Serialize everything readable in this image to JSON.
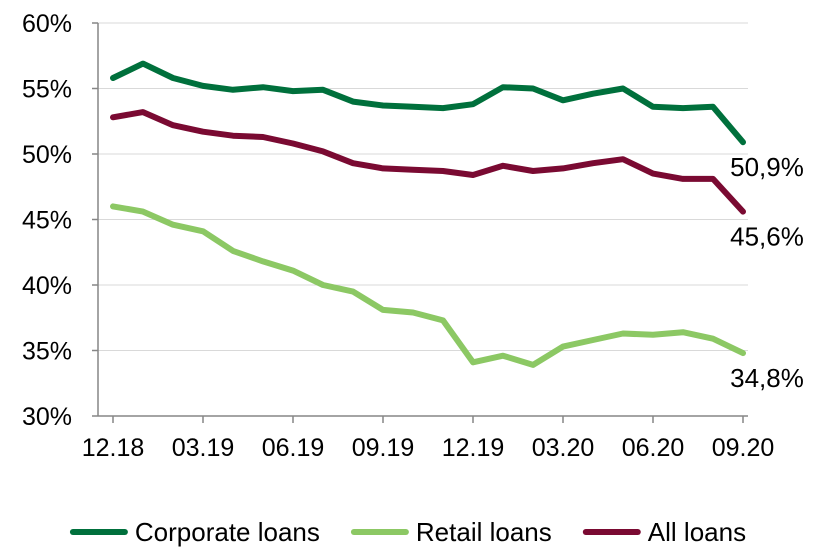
{
  "chart_data": {
    "type": "line",
    "x": [
      "12.18",
      "01.19",
      "02.19",
      "03.19",
      "04.19",
      "05.19",
      "06.19",
      "07.19",
      "08.19",
      "09.19",
      "10.19",
      "11.19",
      "12.19",
      "01.20",
      "02.20",
      "03.20",
      "04.20",
      "05.20",
      "06.20",
      "07.20",
      "08.20",
      "09.20"
    ],
    "x_tick_labels": [
      "12.18",
      "03.19",
      "06.19",
      "09.19",
      "12.19",
      "03.20",
      "06.20",
      "09.20"
    ],
    "y_tick_labels": [
      "30%",
      "35%",
      "40%",
      "45%",
      "50%",
      "55%",
      "60%"
    ],
    "ylim": [
      30,
      60
    ],
    "y_unit": "%",
    "grid": "horizontal",
    "legend_position": "bottom",
    "series": [
      {
        "name": "Corporate loans",
        "color": "#00703c",
        "end_label": "50,9%",
        "values": [
          55.8,
          56.9,
          55.8,
          55.2,
          54.9,
          55.1,
          54.8,
          54.9,
          54.0,
          53.7,
          53.6,
          53.5,
          53.8,
          55.1,
          55.0,
          54.1,
          54.6,
          55.0,
          53.6,
          53.5,
          53.6,
          50.9
        ]
      },
      {
        "name": "Retail loans",
        "color": "#8cc864",
        "end_label": "34,8%",
        "values": [
          46.0,
          45.6,
          44.6,
          44.1,
          42.6,
          41.8,
          41.1,
          40.0,
          39.5,
          38.1,
          37.9,
          37.3,
          34.1,
          34.6,
          33.9,
          35.3,
          35.8,
          36.3,
          36.2,
          36.4,
          35.9,
          34.8
        ]
      },
      {
        "name": "All loans",
        "color": "#7a0a32",
        "end_label": "45,6%",
        "values": [
          52.8,
          53.2,
          52.2,
          51.7,
          51.4,
          51.3,
          50.8,
          50.2,
          49.3,
          48.9,
          48.8,
          48.7,
          48.4,
          49.1,
          48.7,
          48.9,
          49.3,
          49.6,
          48.5,
          48.1,
          48.1,
          45.6
        ]
      }
    ]
  }
}
